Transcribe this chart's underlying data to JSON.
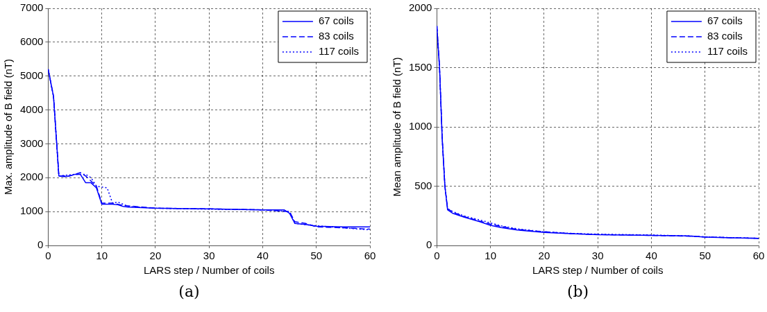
{
  "chart_data": [
    {
      "type": "line",
      "xlabel": "LARS step / Number of coils",
      "ylabel": "Max. amplitude of B field (nT)",
      "annotations": [
        "(a)"
      ],
      "xlim": [
        0,
        60
      ],
      "xticks": [
        0,
        10,
        20,
        30,
        40,
        50,
        60
      ],
      "ylim": [
        0,
        7000
      ],
      "yticks": [
        0,
        1000,
        2000,
        3000,
        4000,
        5000,
        6000,
        7000
      ],
      "grid": true,
      "legend": "top right",
      "marker": "none",
      "series": [
        {
          "name": "67 coils",
          "color": "#0000ff",
          "line_style": "solid",
          "x": [
            0,
            1,
            2,
            3,
            4,
            5,
            6,
            7,
            8,
            9,
            10,
            12,
            13,
            14,
            15,
            20,
            30,
            40,
            44,
            45,
            46,
            48,
            50,
            55,
            60
          ],
          "values": [
            5200,
            4400,
            2050,
            2030,
            2050,
            2100,
            2100,
            1850,
            1850,
            1700,
            1220,
            1220,
            1200,
            1150,
            1130,
            1100,
            1080,
            1050,
            1050,
            950,
            650,
            620,
            570,
            550,
            550
          ]
        },
        {
          "name": "83 coils",
          "color": "#0000ff",
          "line_style": "dashed",
          "x": [
            0,
            1,
            2,
            4,
            6,
            7,
            8,
            9,
            10,
            12,
            14,
            20,
            30,
            40,
            45,
            46,
            48,
            50,
            55,
            60
          ],
          "values": [
            5200,
            4400,
            2050,
            2050,
            2150,
            2050,
            1900,
            1750,
            1250,
            1250,
            1180,
            1100,
            1080,
            1050,
            1000,
            700,
            650,
            550,
            520,
            480
          ]
        },
        {
          "name": "117 coils",
          "color": "#0000ff",
          "line_style": "dotted",
          "x": [
            0,
            1,
            2,
            5,
            7,
            8,
            9,
            11,
            12,
            13,
            15,
            20,
            30,
            40,
            45,
            46,
            50,
            55,
            60
          ],
          "values": [
            5200,
            4400,
            2050,
            2100,
            2100,
            2000,
            1750,
            1700,
            1250,
            1280,
            1150,
            1100,
            1070,
            1050,
            1000,
            650,
            580,
            520,
            460
          ]
        }
      ]
    },
    {
      "type": "line",
      "xlabel": "LARS step / Number of coils",
      "ylabel": "Mean amplitude of B field (nT)",
      "annotations": [
        "(b)"
      ],
      "xlim": [
        0,
        60
      ],
      "xticks": [
        0,
        10,
        20,
        30,
        40,
        50,
        60
      ],
      "ylim": [
        0,
        2000
      ],
      "yticks": [
        0,
        500,
        1000,
        1500,
        2000
      ],
      "grid": true,
      "legend": "top right",
      "marker": "none",
      "series": [
        {
          "name": "67 coils",
          "color": "#0000ff",
          "line_style": "solid",
          "x": [
            0,
            0.5,
            1,
            1.5,
            2,
            3,
            5,
            8,
            10,
            12,
            15,
            20,
            25,
            30,
            40,
            47,
            50,
            55,
            60
          ],
          "values": [
            1850,
            1500,
            900,
            500,
            300,
            270,
            240,
            200,
            170,
            150,
            130,
            110,
            100,
            90,
            85,
            80,
            70,
            65,
            60
          ]
        },
        {
          "name": "83 coils",
          "color": "#0000ff",
          "line_style": "dashed",
          "x": [
            0,
            0.5,
            1,
            1.5,
            2,
            3,
            5,
            8,
            10,
            12,
            15,
            20,
            25,
            30,
            40,
            47,
            50,
            55,
            60
          ],
          "values": [
            1850,
            1500,
            900,
            500,
            310,
            280,
            245,
            205,
            180,
            160,
            135,
            115,
            100,
            92,
            85,
            78,
            72,
            65,
            60
          ]
        },
        {
          "name": "117 coils",
          "color": "#0000ff",
          "line_style": "dotted",
          "x": [
            0,
            0.5,
            1,
            1.5,
            2,
            3,
            5,
            8,
            10,
            12,
            15,
            20,
            25,
            30,
            40,
            47,
            50,
            55,
            60
          ],
          "values": [
            1850,
            1500,
            900,
            500,
            310,
            285,
            250,
            215,
            190,
            165,
            140,
            115,
            102,
            95,
            88,
            80,
            72,
            66,
            60
          ]
        }
      ]
    }
  ]
}
